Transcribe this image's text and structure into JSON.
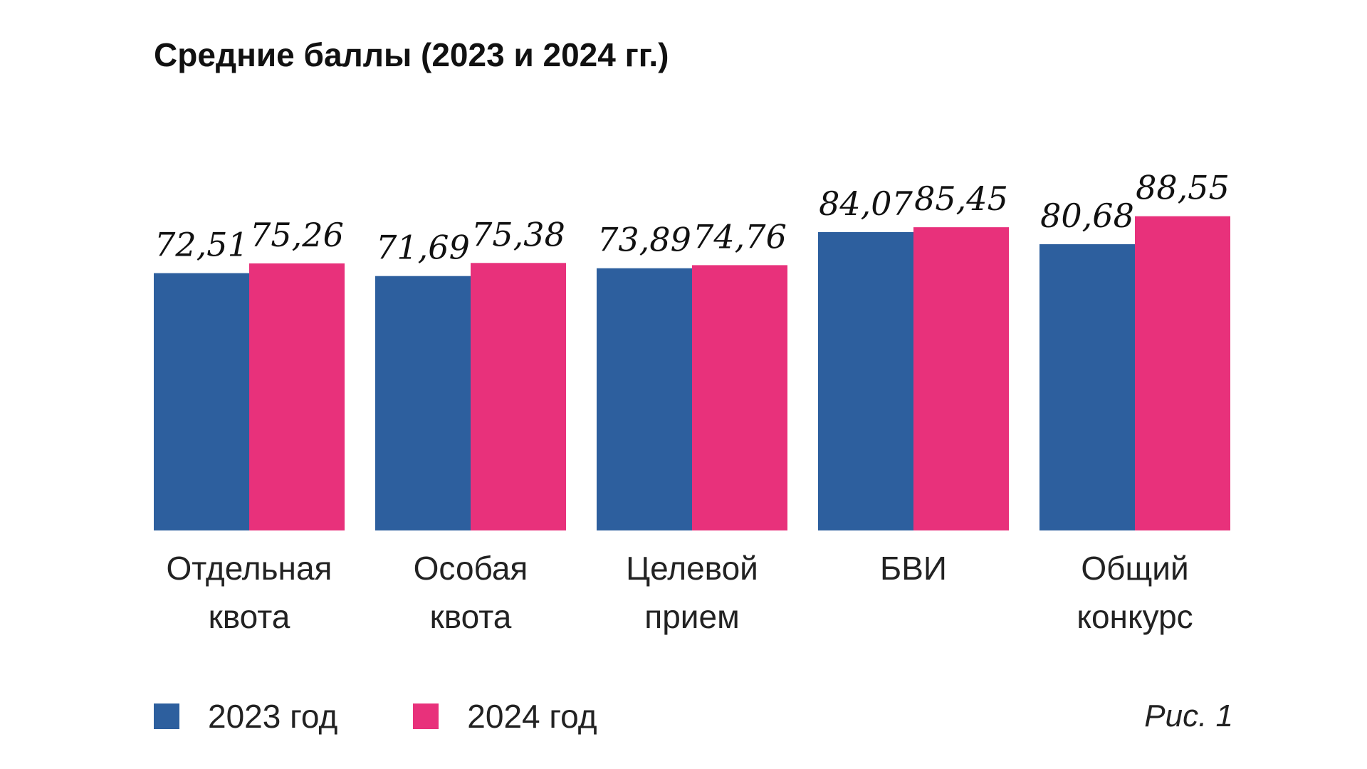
{
  "chart_data": {
    "type": "bar",
    "title": "Средние баллы (2023 и 2024 гг.)",
    "categories": [
      [
        "Отдельная",
        "квота"
      ],
      [
        "Особая",
        "квота"
      ],
      [
        "Целевой",
        "прием"
      ],
      [
        "БВИ"
      ],
      [
        "Общий",
        "конкурс"
      ]
    ],
    "series": [
      {
        "name": "2023 год",
        "color": "#2D5F9E",
        "values": [
          72.51,
          71.69,
          73.89,
          84.07,
          80.68
        ],
        "labels": [
          "72,51",
          "71,69",
          "73,89",
          "84,07",
          "80,68"
        ]
      },
      {
        "name": "2024 год",
        "color": "#E8317B",
        "values": [
          75.26,
          75.38,
          74.76,
          85.45,
          88.55
        ],
        "labels": [
          "75,26",
          "75,38",
          "74,76",
          "85,45",
          "88,55"
        ]
      }
    ],
    "ylim": [
      0,
      100
    ],
    "grid": false,
    "legend_position": "bottom-left",
    "caption": "Рис. 1"
  }
}
